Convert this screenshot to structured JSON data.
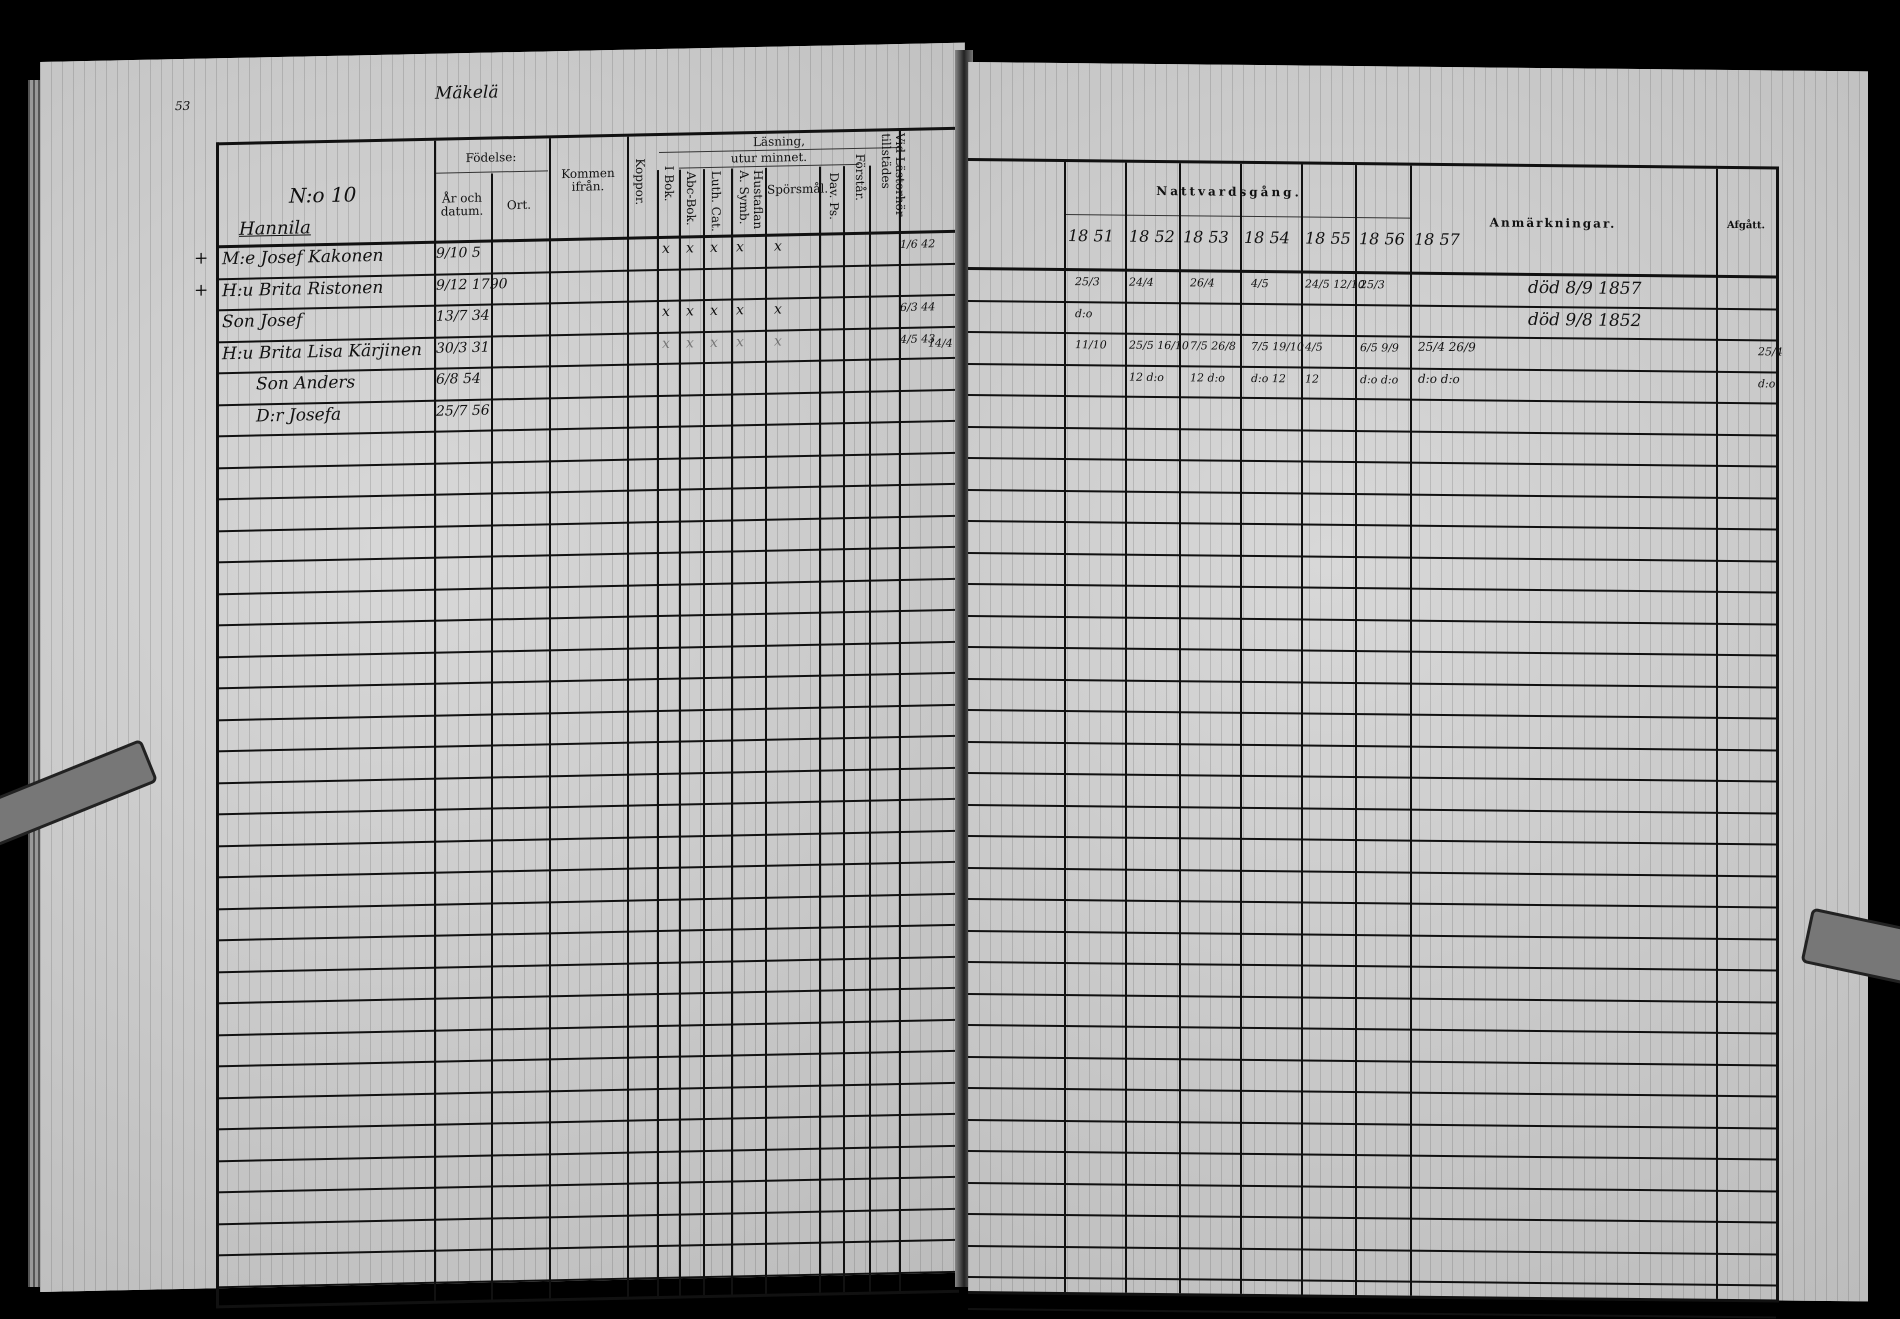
{
  "left_page": {
    "page_number": "53",
    "village": "Mäkelä",
    "household_no": "N:o 10",
    "farm_name": "Hannila",
    "headers": {
      "fodelse": "Födelse:",
      "ar_och_datum": "År och datum.",
      "ort": "Ort.",
      "kommen_ifran": "Kommen ifrån.",
      "koppor": "Koppor.",
      "lasning": "Läsning,",
      "utur_minnet": "utur minnet.",
      "i_bok": "I Bok.",
      "abc_bok": "Abc-Bok.",
      "luth_cat": "Luth. Cat.",
      "hustaflan": "Hustaflan A. Symb.",
      "sporsmal": "Spörsmål.",
      "dav_ps": "Dav. Ps.",
      "forstar": "Förstår.",
      "vid_lastorhor": "Vid Lästorhör tillstädes"
    },
    "rows": [
      {
        "margin": "+",
        "name": "M:e Josef Kakonen",
        "born": "9/10 5",
        "marks": [
          "x",
          "x",
          "x",
          "x",
          "x"
        ],
        "lastorhor": "1/6 42"
      },
      {
        "margin": "+",
        "name": "H:u Brita Ristonen",
        "born": "9/12 1790",
        "marks": [],
        "lastorhor": ""
      },
      {
        "margin": "",
        "name": "Son Josef",
        "born": "13/7 34",
        "marks": [
          "x",
          "x",
          "x",
          "x",
          "x"
        ],
        "lastorhor": "6/3 44"
      },
      {
        "margin": "",
        "name": "H:u Brita Lisa Kärjinen",
        "born": "30/3 31",
        "marks": [
          "x",
          "x",
          "x",
          "x",
          "x"
        ],
        "lastorhor": "4/5 43"
      },
      {
        "margin": "",
        "name": "Son Anders",
        "born": "6/8 54",
        "marks": [],
        "lastorhor": ""
      },
      {
        "margin": "",
        "name": "D:r Josefa",
        "born": "25/7 56",
        "marks": [],
        "lastorhor": ""
      }
    ]
  },
  "right_page": {
    "nattvardsgang": "Nattvardsgång.",
    "years": [
      "18 51",
      "18 52",
      "18 53",
      "18 54",
      "18 55",
      "18 56",
      "18 57"
    ],
    "anmarkningar": "Anmärkningar.",
    "afgatt": "Afgått.",
    "rows": [
      {
        "cells": [
          "",
          "25/3",
          "24/4",
          "26/4",
          "4/5",
          "24/5 12/10",
          "25/3"
        ],
        "remark": "död 8/9 1857",
        "afgatt": ""
      },
      {
        "cells": [
          "",
          "d:o",
          "",
          "",
          "",
          "",
          ""
        ],
        "remark": "död 9/8 1852",
        "afgatt": ""
      },
      {
        "cells": [
          "14/4",
          "11/10",
          "25/5 16/10",
          "7/5 26/8",
          "7/5 19/10",
          "4/5",
          "6/5 9/9"
        ],
        "remark": "25/4   26/9",
        "afgatt": "25/4"
      },
      {
        "cells": [
          "",
          "",
          "12 d:o",
          "12 d:o",
          "d:o 12",
          "12",
          "d:o d:o"
        ],
        "remark": "d:o   d:o",
        "afgatt": "d:o"
      }
    ]
  }
}
